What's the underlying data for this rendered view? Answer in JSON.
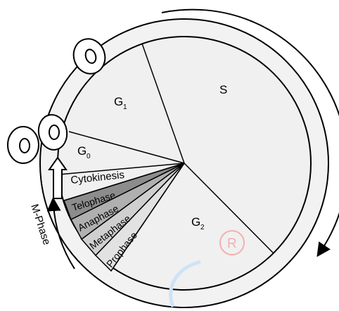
{
  "phases": {
    "s": "S",
    "g1_base": "G",
    "g1_sub": "1",
    "g0_base": "G",
    "g0_sub": "0",
    "g2_base": "G",
    "g2_sub": "2",
    "cytokinesis": "Cytokinesis",
    "telophase": "Telophase",
    "anaphase": "Anaphase",
    "metaphase": "Metaphase",
    "prophase": "Prophase"
  },
  "m_phase_label": "M-Phase",
  "watermark_symbol": "R",
  "colors": {
    "outer_ring": "#f2f2f2",
    "inner_circle": "#f0f0f0",
    "telophase_fill": "#8c8c8c",
    "anaphase_fill": "#b0b0b0",
    "metaphase_fill": "#cfcfcf",
    "prophase_fill": "#e2e2e2",
    "watermark": "#f4a9a9",
    "watermark_c": "#cfe3f6"
  }
}
